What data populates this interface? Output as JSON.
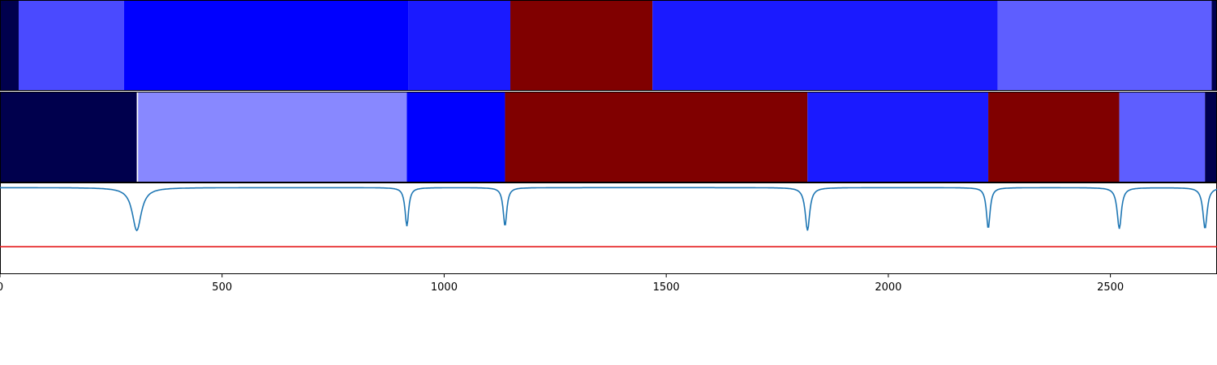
{
  "chart_data": {
    "type": "heatmap",
    "title": "",
    "xlabel": "",
    "ylabel": "",
    "xlim": [
      0,
      2740
    ],
    "x_ticks": [
      0,
      500,
      1000,
      1500,
      2000,
      2500
    ],
    "x_tick_labels": [
      "0",
      "500",
      "1000",
      "1500",
      "2000",
      "2500"
    ],
    "grid": false,
    "rows": [
      {
        "segments": [
          {
            "start": 0,
            "end": 42,
            "color": "#00004d"
          },
          {
            "start": 42,
            "end": 279,
            "color": "#4a4aff"
          },
          {
            "start": 279,
            "end": 920,
            "color": "#0000ff"
          },
          {
            "start": 920,
            "end": 1149,
            "color": "#1a1aff"
          },
          {
            "start": 1149,
            "end": 1469,
            "color": "#800000"
          },
          {
            "start": 1469,
            "end": 2246,
            "color": "#1a1aff"
          },
          {
            "start": 2246,
            "end": 2728,
            "color": "#5e5eff"
          },
          {
            "start": 2728,
            "end": 2740,
            "color": "#00004d"
          }
        ]
      },
      {
        "segments": [
          {
            "start": 0,
            "end": 308,
            "color": "#00004d"
          },
          {
            "start": 308,
            "end": 311,
            "color": "#ffffff"
          },
          {
            "start": 311,
            "end": 916,
            "color": "#8888ff"
          },
          {
            "start": 916,
            "end": 1137,
            "color": "#0000ff"
          },
          {
            "start": 1137,
            "end": 1818,
            "color": "#800000"
          },
          {
            "start": 1818,
            "end": 2225,
            "color": "#1a1aff"
          },
          {
            "start": 2225,
            "end": 2520,
            "color": "#800000"
          },
          {
            "start": 2520,
            "end": 2713,
            "color": "#5e5eff"
          },
          {
            "start": 2713,
            "end": 2740,
            "color": "#00004d"
          }
        ]
      }
    ],
    "signal": {
      "color": "#1f77b4",
      "baseline": 1.0,
      "ylim": [
        0,
        1.05
      ],
      "dips": [
        {
          "x": 308,
          "depth": 0.5,
          "width": 30
        },
        {
          "x": 916,
          "depth": 0.45,
          "width": 12
        },
        {
          "x": 1137,
          "depth": 0.45,
          "width": 12
        },
        {
          "x": 1818,
          "depth": 0.5,
          "width": 15
        },
        {
          "x": 2225,
          "depth": 0.48,
          "width": 12
        },
        {
          "x": 2520,
          "depth": 0.48,
          "width": 14
        },
        {
          "x": 2713,
          "depth": 0.48,
          "width": 14
        }
      ]
    },
    "threshold": {
      "y": 0.31,
      "color": "#e41a1c"
    }
  }
}
